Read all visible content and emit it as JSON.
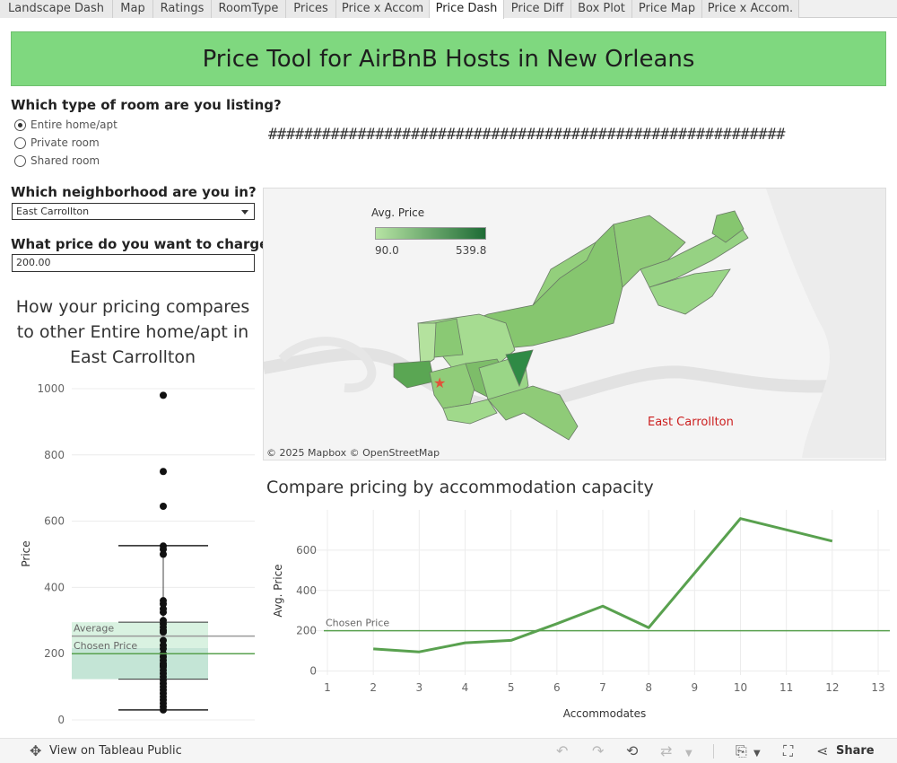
{
  "tabs": [
    {
      "label": "Landscape Dash",
      "active": false
    },
    {
      "label": "Map",
      "active": false
    },
    {
      "label": "Ratings",
      "active": false
    },
    {
      "label": "RoomType",
      "active": false
    },
    {
      "label": "Prices",
      "active": false
    },
    {
      "label": "Price x Accom",
      "active": false
    },
    {
      "label": "Price Dash",
      "active": true
    },
    {
      "label": "Price Diff",
      "active": false
    },
    {
      "label": "Box Plot",
      "active": false
    },
    {
      "label": "Price Map",
      "active": false
    },
    {
      "label": "Price x Accom.",
      "active": false
    }
  ],
  "dashboard": {
    "title": "Price Tool for AirBnB Hosts in New Orleans",
    "hashes": "##########################################################"
  },
  "controls": {
    "room_question": "Which type of room are you listing?",
    "room_options": [
      {
        "label": "Entire home/apt",
        "selected": true
      },
      {
        "label": "Private room",
        "selected": false
      },
      {
        "label": "Shared room",
        "selected": false
      }
    ],
    "neighborhood_question": "Which neighborhood are you in?",
    "neighborhood_value": "East Carrollton",
    "price_question": "What price do you want to charge?",
    "price_value": "200.00"
  },
  "map": {
    "legend_title": "Avg. Price",
    "legend_min": "90.0",
    "legend_max": "539.8",
    "selected_label": "East Carrollton",
    "attribution": "© 2025 Mapbox  © OpenStreetMap",
    "colors": {
      "low": "#b7e4a4",
      "high": "#1e6b35",
      "marker": "#e0533a",
      "label": "#cc1f1f"
    }
  },
  "chart_data": [
    {
      "type": "box",
      "title": "How your pricing compares to other Entire home/apt in East Carrollton",
      "ylabel": "Price",
      "ylim": [
        0,
        1000
      ],
      "yticks": [
        0,
        200,
        400,
        600,
        800,
        1000
      ],
      "whisker_low": 30,
      "q1": 123,
      "median": 217,
      "q3": 295,
      "whisker_high": 526,
      "average": 253,
      "chosen_price": 200,
      "average_label": "Average",
      "chosen_label": "Chosen Price",
      "points": [
        980,
        750,
        645,
        525,
        515,
        500,
        360,
        350,
        335,
        325,
        300,
        290,
        280,
        270,
        265,
        240,
        225,
        215,
        200,
        190,
        180,
        170,
        165,
        160,
        150,
        140,
        130,
        120,
        110,
        100,
        90,
        80,
        70,
        60,
        50,
        40,
        30
      ]
    },
    {
      "type": "line",
      "title": "Compare pricing by accommodation capacity",
      "xlabel": "Accommodates",
      "ylabel": "Avg. Price",
      "x": [
        2,
        3,
        4,
        5,
        6,
        7,
        8,
        10,
        12
      ],
      "y": [
        110,
        95,
        140,
        152,
        235,
        322,
        215,
        757,
        645
      ],
      "xticks": [
        1,
        2,
        3,
        4,
        5,
        6,
        7,
        8,
        9,
        10,
        11,
        12,
        13
      ],
      "yticks": [
        0,
        200,
        400,
        600
      ],
      "xlim": [
        1,
        13
      ],
      "ylim": [
        -20,
        800
      ],
      "chosen_price": 200,
      "chosen_label": "Chosen Price",
      "color": "#59a14f"
    }
  ],
  "footer": {
    "view_label": "View on Tableau Public",
    "share_label": "Share"
  }
}
